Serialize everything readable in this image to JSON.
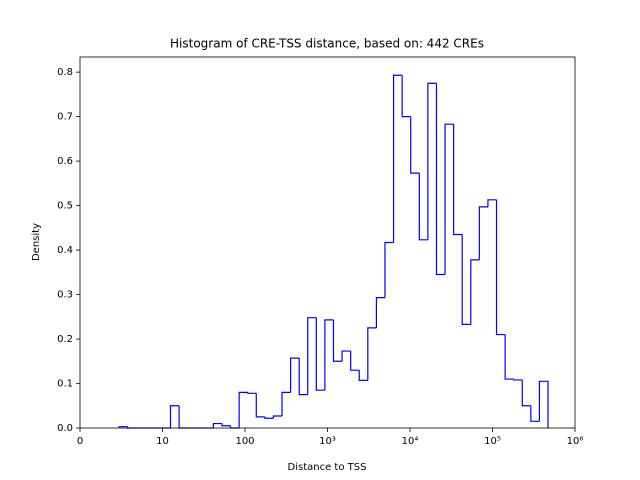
{
  "chart_data": {
    "type": "histogram",
    "title": "Histogram of CRE-TSS distance, based on: 442 CREs",
    "xlabel": "Distance to TSS",
    "ylabel": "Density",
    "xscale": "symlog",
    "linthresh": 10,
    "color": "#0000ff",
    "xlim": [
      0,
      1000000
    ],
    "ylim": [
      0,
      0.834
    ],
    "xticks": [
      0,
      10,
      100,
      {
        "value": 1000,
        "label": "10³"
      },
      {
        "value": 10000,
        "label": "10⁴"
      },
      {
        "value": 100000,
        "label": "10⁵"
      },
      {
        "value": 1000000,
        "label": "10⁶"
      }
    ],
    "yticks": [
      {
        "value": 0,
        "label": "0.0"
      },
      0.1,
      0.2,
      0.3,
      0.4,
      0.5,
      0.6,
      0.7,
      0.8
    ],
    "bins": [
      4.73,
      5.77,
      6.81,
      7.85,
      8.89,
      9.93,
      12.5,
      15.9,
      20.2,
      25.6,
      32.6,
      41.4,
      52.6,
      66.8,
      84.9,
      108,
      137,
      174,
      221,
      281,
      357,
      454,
      576,
      732,
      930,
      1182,
      1502,
      1909,
      2425,
      3081,
      3915,
      4974,
      6320,
      8030,
      10200,
      12970,
      16470,
      20930,
      26590,
      33790,
      42930,
      54540,
      69290,
      88040,
      111900,
      142200,
      180600,
      229500,
      291600,
      370500,
      470800
    ],
    "values": [
      0.003,
      0,
      0,
      0,
      0,
      0,
      0.05,
      0,
      0,
      0,
      0,
      0.01,
      0.005,
      0,
      0.08,
      0.078,
      0.025,
      0.022,
      0.027,
      0.08,
      0.157,
      0.075,
      0.248,
      0.085,
      0.243,
      0.15,
      0.173,
      0.13,
      0.107,
      0.225,
      0.293,
      0.417,
      0.793,
      0.7,
      0.573,
      0.423,
      0.775,
      0.345,
      0.683,
      0.435,
      0.233,
      0.378,
      0.497,
      0.513,
      0.21,
      0.11,
      0.108,
      0.05,
      0.015,
      0.105
    ]
  }
}
